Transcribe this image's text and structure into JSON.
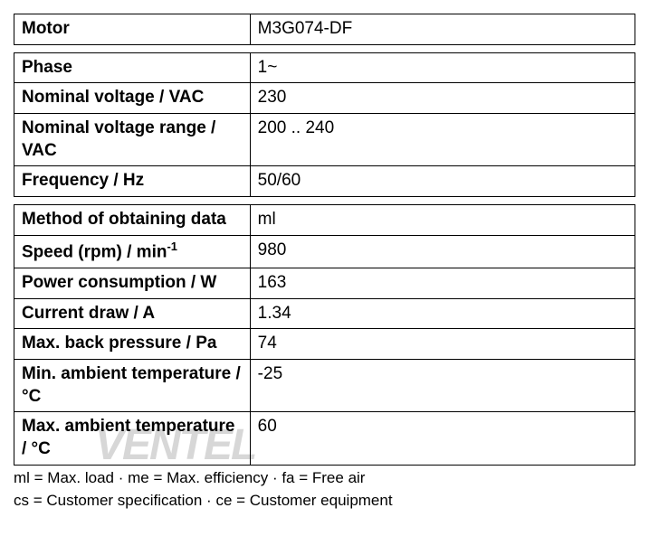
{
  "table1": {
    "rows": [
      {
        "label": "Motor",
        "value": "M3G074-DF"
      }
    ]
  },
  "table2": {
    "rows": [
      {
        "label": "Phase",
        "value": "1~"
      },
      {
        "label": "Nominal voltage / VAC",
        "value": "230"
      },
      {
        "label": "Nominal voltage range / VAC",
        "value": "200 .. 240"
      },
      {
        "label": "Frequency / Hz",
        "value": "50/60"
      }
    ]
  },
  "table3": {
    "rows": [
      {
        "label": "Method of obtaining data",
        "value": "ml"
      },
      {
        "label_html": "Speed (rpm) / min⁻¹",
        "label": "Speed (rpm) / min",
        "label_sup": "-1",
        "value": "980"
      },
      {
        "label": "Power consumption / W",
        "value": "163"
      },
      {
        "label": "Current draw / A",
        "value": "1.34"
      },
      {
        "label": "Max. back pressure / Pa",
        "value": "74"
      },
      {
        "label": "Min. ambient temperature / °C",
        "value": "-25"
      },
      {
        "label": "Max. ambient temperature / °C",
        "value": "60"
      }
    ]
  },
  "footnotes": {
    "line1": "ml = Max. load · me = Max. efficiency · fa = Free air",
    "line2": "cs = Customer specification · ce = Customer equipment"
  },
  "watermark": {
    "text": "VENTEL"
  },
  "styling": {
    "border_color": "#000000",
    "background_color": "#ffffff",
    "font_size_cell": 19,
    "font_size_footnote": 17,
    "label_cell_width_percent": 38,
    "value_cell_width_percent": 62,
    "watermark_color": "#c0c0c0"
  }
}
